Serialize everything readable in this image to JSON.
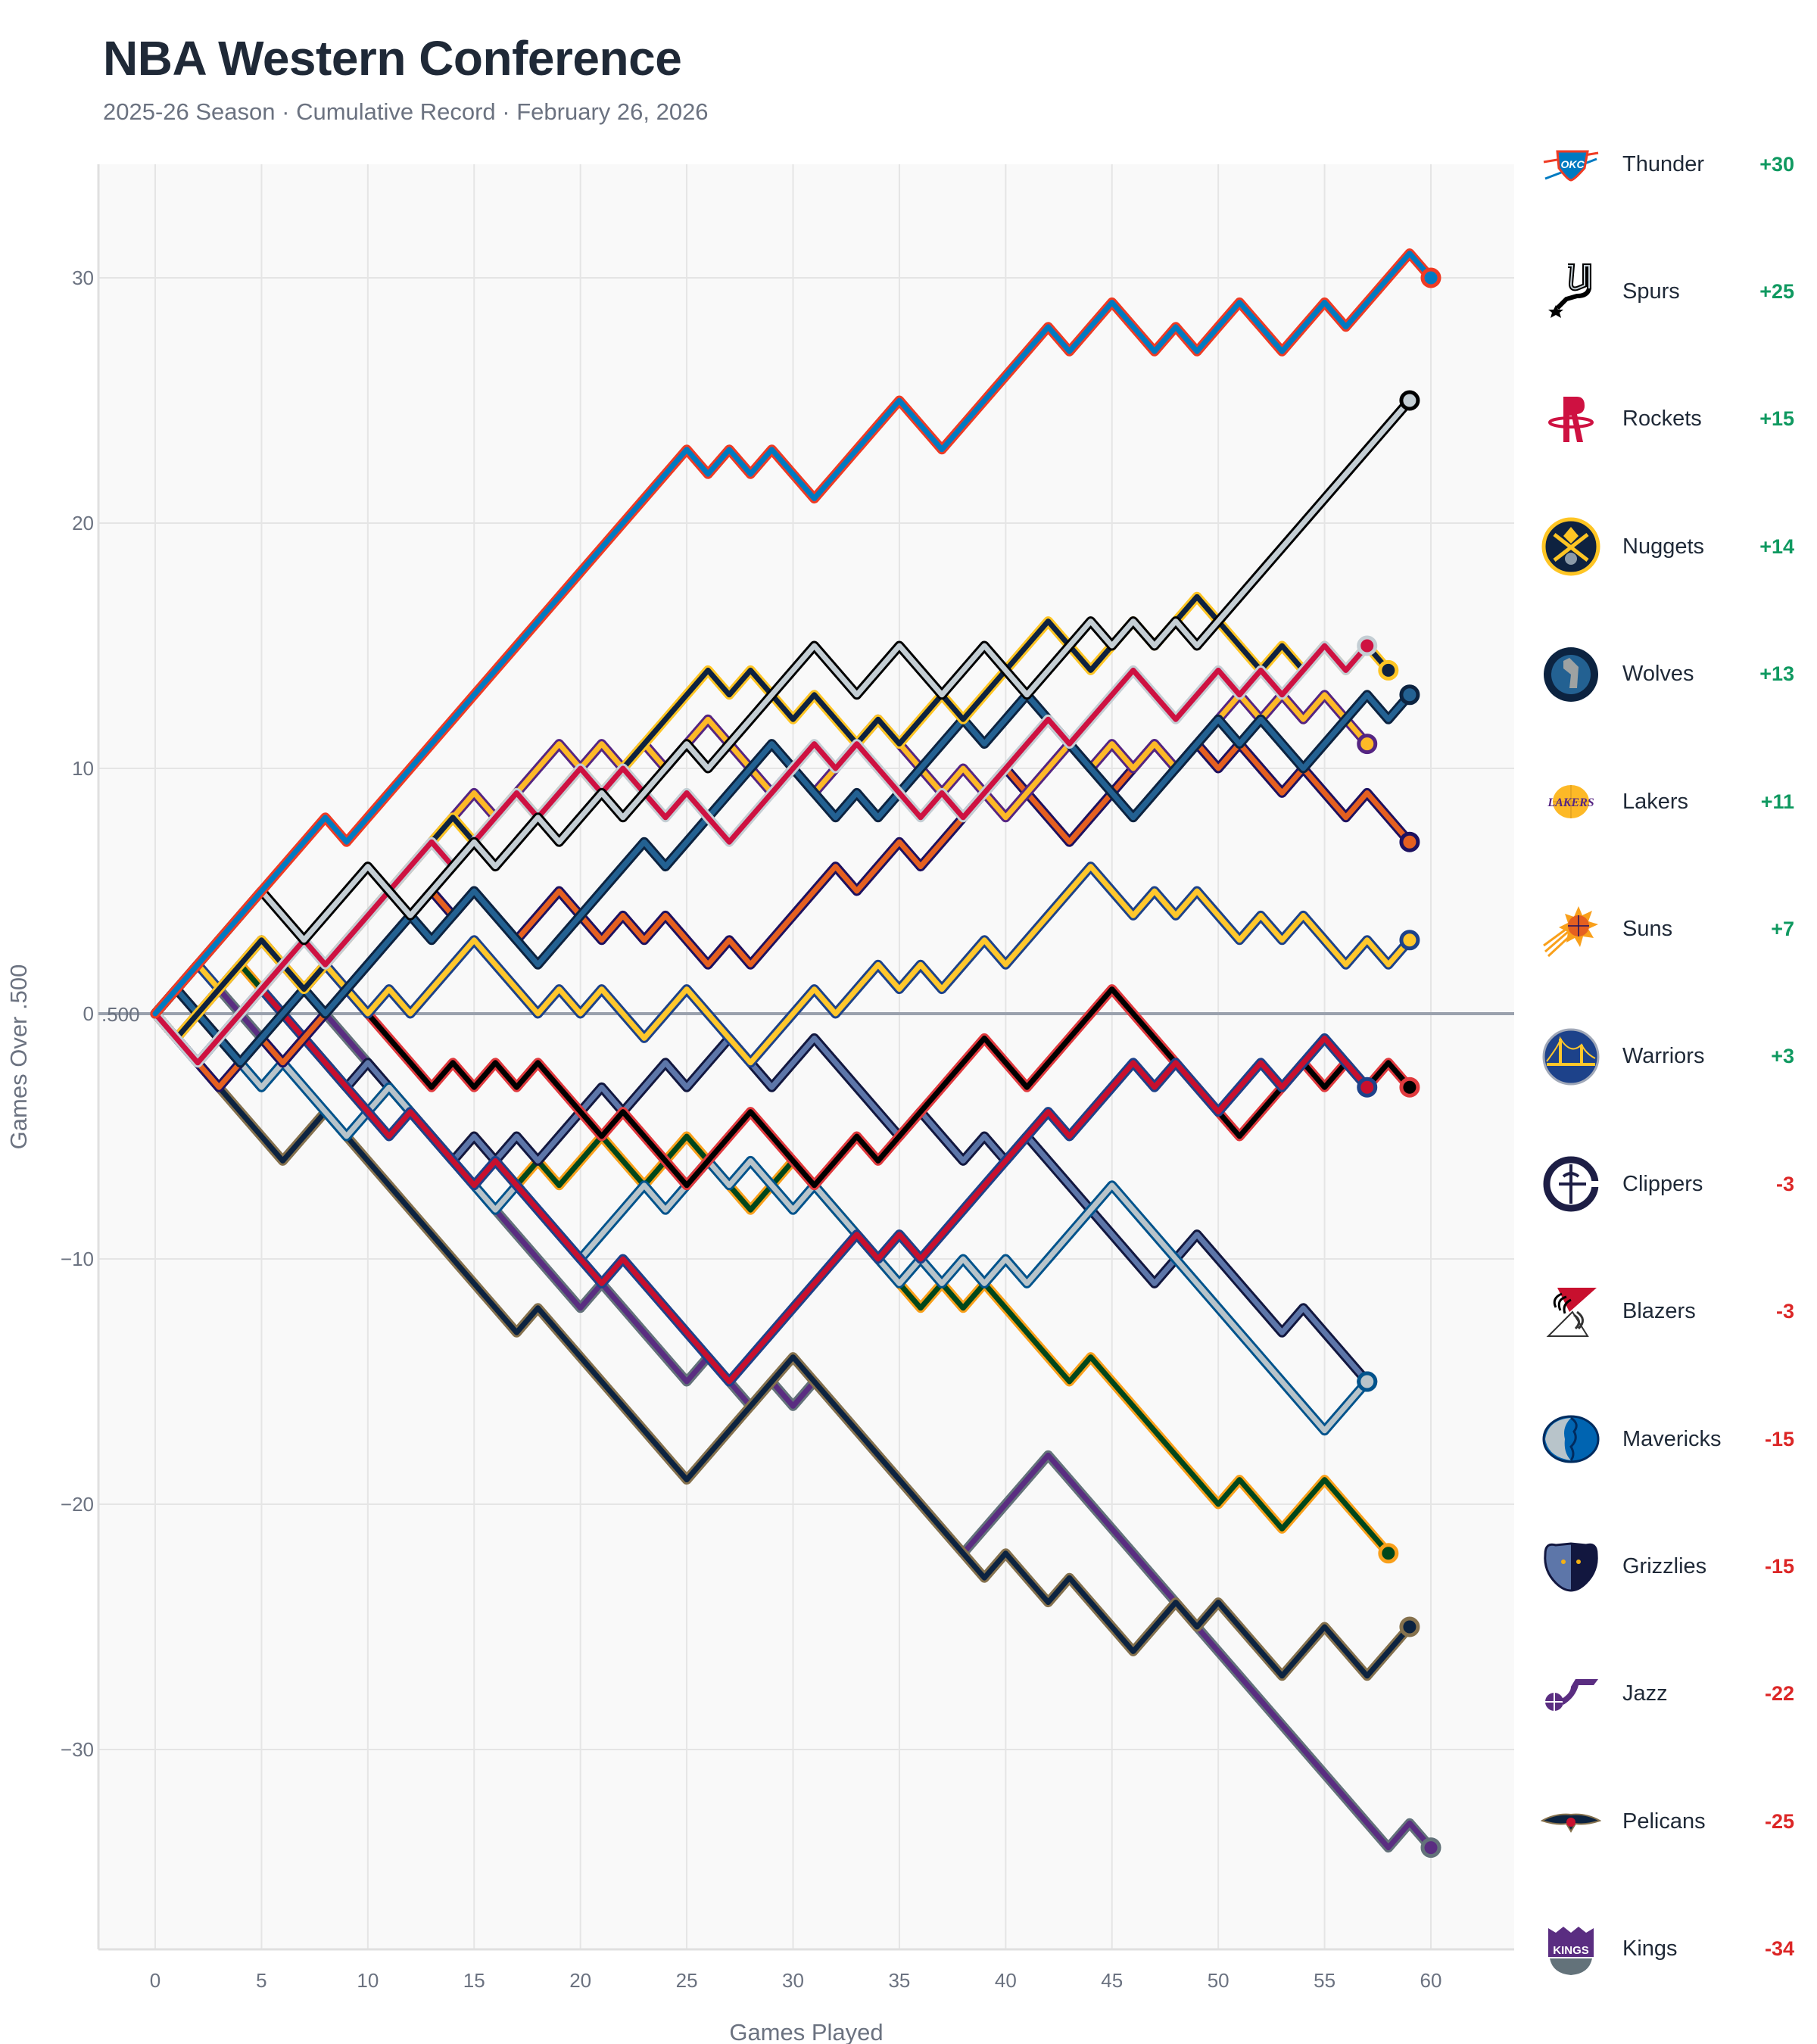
{
  "header": {
    "title": "NBA Western Conference",
    "subtitle": "2025-26 Season · Cumulative Record · February 26, 2026"
  },
  "chart_data": {
    "type": "line",
    "title": "NBA Western Conference",
    "subtitle": "2025-26 Season · Cumulative Record · February 26, 2026",
    "xlabel": "Games Played",
    "ylabel": "Games Over .500",
    "xlim": [
      -2.7,
      63.8
    ],
    "ylim": [
      -38.5,
      34.6
    ],
    "xticks": [
      0,
      5,
      10,
      15,
      20,
      25,
      30,
      35,
      40,
      45,
      50,
      55,
      60
    ],
    "yticks": [
      30,
      20,
      10,
      0,
      -10,
      -20,
      -30
    ],
    "ytick_labels": [
      "30",
      "20",
      "10",
      "0",
      "−10",
      "−20",
      "−30"
    ],
    "reference_line": {
      "y": 0,
      "label": ".500"
    },
    "grid": true,
    "legend_position": "right",
    "series": [
      {
        "name": "Thunder",
        "final": "+30",
        "color": "#007AC1",
        "border": "#EF3B24",
        "values": [
          0,
          1,
          2,
          3,
          4,
          5,
          6,
          7,
          8,
          7,
          8,
          9,
          10,
          11,
          12,
          13,
          14,
          15,
          16,
          17,
          18,
          19,
          20,
          21,
          22,
          23,
          22,
          23,
          22,
          23,
          22,
          21,
          22,
          23,
          24,
          25,
          24,
          23,
          24,
          25,
          26,
          27,
          28,
          27,
          28,
          29,
          28,
          27,
          28,
          27,
          28,
          29,
          28,
          27,
          28,
          29,
          28,
          29,
          30,
          31,
          30
        ]
      },
      {
        "name": "Spurs",
        "final": "+25",
        "color": "#C4CED4",
        "border": "#000000",
        "values": [
          0,
          1,
          2,
          3,
          4,
          5,
          4,
          3,
          4,
          5,
          6,
          5,
          4,
          5,
          6,
          7,
          6,
          7,
          8,
          7,
          8,
          9,
          8,
          9,
          10,
          11,
          10,
          11,
          12,
          13,
          14,
          15,
          14,
          13,
          14,
          15,
          14,
          13,
          14,
          15,
          14,
          13,
          14,
          15,
          16,
          15,
          16,
          15,
          16,
          15,
          16,
          17,
          18,
          19,
          20,
          21,
          22,
          23,
          24,
          25
        ]
      },
      {
        "name": "Rockets",
        "final": "+15",
        "color": "#CE1141",
        "border": "#C4CED4",
        "values": [
          0,
          -1,
          -2,
          -1,
          0,
          1,
          2,
          3,
          2,
          3,
          4,
          5,
          6,
          7,
          6,
          7,
          8,
          9,
          8,
          9,
          10,
          9,
          10,
          9,
          8,
          9,
          8,
          7,
          8,
          9,
          10,
          11,
          10,
          11,
          10,
          9,
          8,
          9,
          8,
          9,
          10,
          11,
          12,
          11,
          12,
          13,
          14,
          13,
          12,
          13,
          14,
          13,
          14,
          13,
          14,
          15,
          14,
          15
        ]
      },
      {
        "name": "Nuggets",
        "final": "+14",
        "color": "#0E2240",
        "border": "#FEC524",
        "values": [
          0,
          -1,
          0,
          1,
          2,
          3,
          2,
          1,
          2,
          3,
          4,
          5,
          6,
          7,
          8,
          7,
          8,
          9,
          8,
          9,
          10,
          9,
          10,
          11,
          12,
          13,
          14,
          13,
          14,
          13,
          12,
          13,
          12,
          11,
          12,
          11,
          12,
          13,
          12,
          13,
          14,
          15,
          16,
          15,
          14,
          15,
          16,
          15,
          16,
          17,
          16,
          15,
          14,
          15,
          14,
          15,
          14,
          15,
          14
        ]
      },
      {
        "name": "Wolves",
        "final": "+13",
        "color": "#236192",
        "border": "#0C2340",
        "values": [
          0,
          1,
          0,
          -1,
          -2,
          -1,
          0,
          1,
          0,
          1,
          2,
          3,
          4,
          3,
          4,
          5,
          4,
          3,
          2,
          3,
          4,
          5,
          6,
          7,
          6,
          7,
          8,
          9,
          10,
          11,
          10,
          9,
          8,
          9,
          8,
          9,
          10,
          11,
          12,
          11,
          12,
          13,
          12,
          11,
          10,
          9,
          8,
          9,
          10,
          11,
          12,
          11,
          12,
          11,
          10,
          11,
          12,
          13,
          12,
          13
        ]
      },
      {
        "name": "Lakers",
        "final": "+11",
        "color": "#FDB927",
        "border": "#552583",
        "values": [
          0,
          -1,
          0,
          1,
          2,
          3,
          2,
          1,
          2,
          3,
          4,
          5,
          6,
          7,
          8,
          9,
          8,
          9,
          10,
          11,
          10,
          11,
          10,
          11,
          10,
          11,
          12,
          11,
          10,
          9,
          10,
          9,
          10,
          11,
          12,
          11,
          10,
          9,
          10,
          9,
          8,
          9,
          10,
          11,
          10,
          11,
          10,
          11,
          10,
          11,
          12,
          13,
          12,
          13,
          12,
          13,
          12,
          11
        ]
      },
      {
        "name": "Suns",
        "final": "+7",
        "color": "#E56020",
        "border": "#1D1160",
        "values": [
          0,
          -1,
          -2,
          -3,
          -2,
          -1,
          -2,
          -1,
          0,
          1,
          2,
          3,
          4,
          5,
          4,
          5,
          4,
          3,
          4,
          5,
          4,
          3,
          4,
          3,
          4,
          3,
          2,
          3,
          2,
          3,
          4,
          5,
          6,
          5,
          6,
          7,
          6,
          7,
          8,
          9,
          10,
          9,
          8,
          7,
          8,
          9,
          10,
          11,
          10,
          11,
          10,
          11,
          10,
          9,
          10,
          9,
          8,
          9,
          8,
          7
        ]
      },
      {
        "name": "Warriors",
        "final": "+3",
        "color": "#FFC72C",
        "border": "#1D428A",
        "values": [
          0,
          1,
          2,
          1,
          2,
          3,
          2,
          1,
          2,
          1,
          0,
          1,
          0,
          1,
          2,
          3,
          2,
          1,
          0,
          1,
          0,
          1,
          0,
          -1,
          0,
          1,
          0,
          -1,
          -2,
          -1,
          0,
          1,
          0,
          1,
          2,
          1,
          2,
          1,
          2,
          3,
          2,
          3,
          4,
          5,
          6,
          5,
          4,
          5,
          4,
          5,
          4,
          3,
          4,
          3,
          4,
          3,
          2,
          3,
          2,
          3
        ]
      },
      {
        "name": "Clippers",
        "final": "-3",
        "color": "#C8102E",
        "border": "#1D428A",
        "values": [
          0,
          -1,
          -2,
          -1,
          0,
          1,
          0,
          -1,
          -2,
          -3,
          -4,
          -5,
          -4,
          -5,
          -6,
          -7,
          -6,
          -7,
          -8,
          -9,
          -10,
          -11,
          -10,
          -11,
          -12,
          -13,
          -14,
          -15,
          -14,
          -13,
          -12,
          -11,
          -10,
          -9,
          -10,
          -9,
          -10,
          -9,
          -8,
          -7,
          -6,
          -5,
          -4,
          -5,
          -4,
          -3,
          -2,
          -3,
          -2,
          -3,
          -4,
          -3,
          -2,
          -3,
          -2,
          -1,
          -2,
          -3
        ]
      },
      {
        "name": "Blazers",
        "final": "-3",
        "color": "#000000",
        "border": "#E03A3E",
        "values": [
          0,
          1,
          0,
          -1,
          0,
          1,
          2,
          1,
          2,
          1,
          0,
          -1,
          -2,
          -3,
          -2,
          -3,
          -2,
          -3,
          -2,
          -3,
          -4,
          -5,
          -4,
          -5,
          -6,
          -7,
          -6,
          -5,
          -4,
          -5,
          -6,
          -7,
          -6,
          -5,
          -6,
          -5,
          -4,
          -3,
          -2,
          -1,
          -2,
          -3,
          -2,
          -1,
          0,
          1,
          0,
          -1,
          -2,
          -3,
          -4,
          -5,
          -4,
          -3,
          -2,
          -3,
          -2,
          -3,
          -2,
          -3
        ]
      },
      {
        "name": "Mavericks",
        "final": "-15",
        "color": "#B8C4CA",
        "border": "#00538C",
        "values": [
          0,
          -1,
          -2,
          -1,
          -2,
          -3,
          -2,
          -3,
          -4,
          -5,
          -4,
          -3,
          -4,
          -5,
          -6,
          -7,
          -8,
          -7,
          -8,
          -9,
          -10,
          -9,
          -8,
          -7,
          -8,
          -7,
          -6,
          -7,
          -6,
          -7,
          -8,
          -7,
          -8,
          -9,
          -10,
          -11,
          -10,
          -11,
          -10,
          -11,
          -10,
          -11,
          -10,
          -9,
          -8,
          -7,
          -8,
          -9,
          -10,
          -11,
          -12,
          -13,
          -14,
          -15,
          -16,
          -17,
          -16,
          -15
        ]
      },
      {
        "name": "Grizzlies",
        "final": "-15",
        "color": "#5D76A9",
        "border": "#12173F",
        "values": [
          0,
          1,
          0,
          -1,
          -2,
          -3,
          -2,
          -1,
          -2,
          -3,
          -2,
          -3,
          -4,
          -5,
          -6,
          -5,
          -6,
          -5,
          -6,
          -5,
          -4,
          -3,
          -4,
          -3,
          -2,
          -3,
          -2,
          -1,
          -2,
          -3,
          -2,
          -1,
          -2,
          -3,
          -4,
          -5,
          -4,
          -5,
          -6,
          -5,
          -6,
          -5,
          -6,
          -7,
          -8,
          -9,
          -10,
          -11,
          -10,
          -9,
          -10,
          -11,
          -12,
          -13,
          -12,
          -13,
          -14,
          -15
        ]
      },
      {
        "name": "Jazz",
        "final": "-22",
        "color": "#00471B",
        "border": "#F9A01B",
        "values": [
          0,
          -1,
          0,
          1,
          2,
          1,
          0,
          -1,
          -2,
          -3,
          -4,
          -3,
          -4,
          -5,
          -6,
          -5,
          -6,
          -7,
          -6,
          -7,
          -6,
          -5,
          -6,
          -7,
          -6,
          -5,
          -6,
          -7,
          -8,
          -7,
          -6,
          -7,
          -8,
          -9,
          -10,
          -11,
          -12,
          -11,
          -12,
          -11,
          -12,
          -13,
          -14,
          -15,
          -14,
          -15,
          -16,
          -17,
          -18,
          -19,
          -20,
          -19,
          -20,
          -21,
          -20,
          -19,
          -20,
          -21,
          -22
        ]
      },
      {
        "name": "Pelicans",
        "final": "-25",
        "color": "#0C2340",
        "border": "#85714D",
        "values": [
          0,
          -1,
          -2,
          -3,
          -4,
          -5,
          -6,
          -5,
          -4,
          -5,
          -6,
          -7,
          -8,
          -9,
          -10,
          -11,
          -12,
          -13,
          -12,
          -13,
          -14,
          -15,
          -16,
          -17,
          -18,
          -19,
          -18,
          -17,
          -16,
          -15,
          -14,
          -15,
          -16,
          -17,
          -18,
          -19,
          -20,
          -21,
          -22,
          -23,
          -22,
          -23,
          -24,
          -23,
          -24,
          -25,
          -26,
          -25,
          -24,
          -25,
          -24,
          -25,
          -26,
          -27,
          -26,
          -25,
          -26,
          -27,
          -26,
          -25
        ]
      },
      {
        "name": "Kings",
        "final": "-34",
        "color": "#5A2D81",
        "border": "#63727A",
        "values": [
          0,
          -1,
          0,
          1,
          0,
          -1,
          0,
          1,
          0,
          -1,
          -2,
          -3,
          -4,
          -5,
          -6,
          -7,
          -8,
          -9,
          -10,
          -11,
          -12,
          -11,
          -12,
          -13,
          -14,
          -15,
          -14,
          -15,
          -16,
          -15,
          -16,
          -15,
          -16,
          -17,
          -18,
          -19,
          -20,
          -21,
          -22,
          -21,
          -20,
          -19,
          -18,
          -19,
          -20,
          -21,
          -22,
          -23,
          -24,
          -25,
          -26,
          -27,
          -28,
          -29,
          -30,
          -31,
          -32,
          -33,
          -34,
          -33,
          -34
        ]
      }
    ]
  },
  "legend": {
    "positive_color": "#0f9960",
    "negative_color": "#dc2626",
    "items": [
      {
        "name": "Thunder",
        "value": "+30",
        "logo": "okc-thunder-logo-icon"
      },
      {
        "name": "Spurs",
        "value": "+25",
        "logo": "spurs-logo-icon"
      },
      {
        "name": "Rockets",
        "value": "+15",
        "logo": "rockets-logo-icon"
      },
      {
        "name": "Nuggets",
        "value": "+14",
        "logo": "nuggets-logo-icon"
      },
      {
        "name": "Wolves",
        "value": "+13",
        "logo": "timberwolves-logo-icon"
      },
      {
        "name": "Lakers",
        "value": "+11",
        "logo": "lakers-logo-icon"
      },
      {
        "name": "Suns",
        "value": "+7",
        "logo": "suns-logo-icon"
      },
      {
        "name": "Warriors",
        "value": "+3",
        "logo": "warriors-logo-icon"
      },
      {
        "name": "Clippers",
        "value": "-3",
        "logo": "clippers-logo-icon"
      },
      {
        "name": "Blazers",
        "value": "-3",
        "logo": "blazers-logo-icon"
      },
      {
        "name": "Mavericks",
        "value": "-15",
        "logo": "mavericks-logo-icon"
      },
      {
        "name": "Grizzlies",
        "value": "-15",
        "logo": "grizzlies-logo-icon"
      },
      {
        "name": "Jazz",
        "value": "-22",
        "logo": "jazz-logo-icon"
      },
      {
        "name": "Pelicans",
        "value": "-25",
        "logo": "pelicans-logo-icon"
      },
      {
        "name": "Kings",
        "value": "-34",
        "logo": "kings-logo-icon"
      }
    ]
  }
}
